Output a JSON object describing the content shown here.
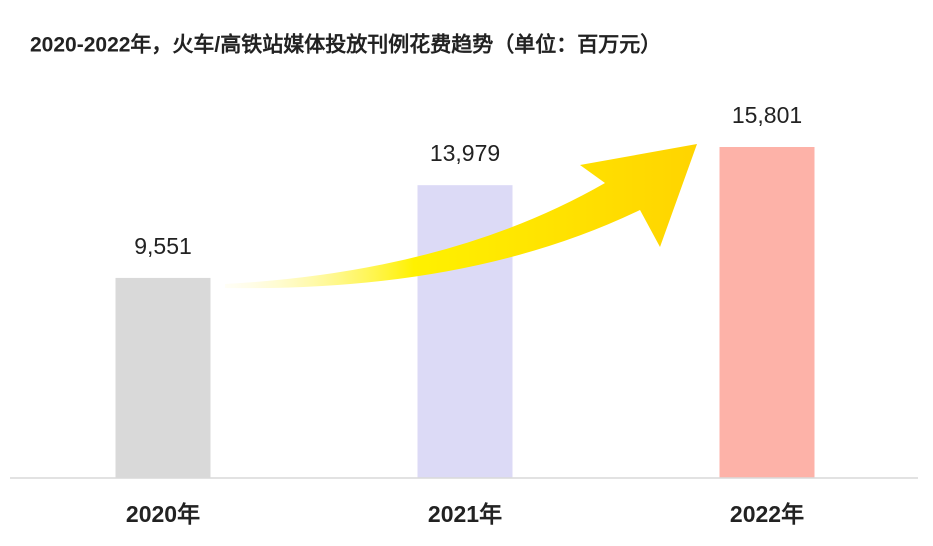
{
  "chart_data": {
    "type": "bar",
    "title": "2020-2022年，火车/高铁站媒体投放刊例花费趋势（单位：百万元）",
    "categories": [
      "2020年",
      "2021年",
      "2022年"
    ],
    "values": [
      9551,
      13979,
      15801
    ],
    "value_labels": [
      "9,551",
      "13,979",
      "15,801"
    ],
    "colors": [
      "#d9d9d9",
      "#dcdaf6",
      "#fdb2a8"
    ]
  }
}
